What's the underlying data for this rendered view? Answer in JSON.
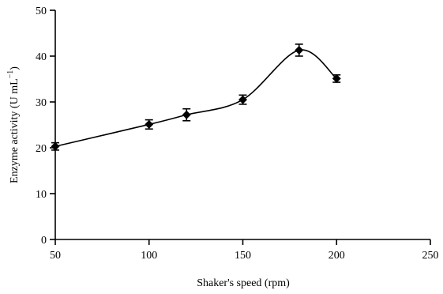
{
  "chart_data": {
    "type": "line",
    "title": "",
    "xlabel": "Shaker's speed (rpm)",
    "ylabel_main": "Enzyme activity (U mL",
    "ylabel_sup": "−1",
    "ylabel_close": ")",
    "xlim": [
      50,
      250
    ],
    "ylim": [
      0,
      50
    ],
    "xticks": [
      50,
      100,
      150,
      200,
      250
    ],
    "yticks": [
      0,
      10,
      20,
      30,
      40,
      50
    ],
    "grid": false,
    "marker": "diamond",
    "smooth": true,
    "series": [
      {
        "x": [
          50,
          100,
          120,
          150,
          180,
          200
        ],
        "y": [
          20.3,
          25.1,
          27.2,
          30.5,
          41.3,
          35.1
        ],
        "error": [
          0.8,
          1.0,
          1.3,
          1.0,
          1.3,
          0.8
        ]
      }
    ]
  }
}
